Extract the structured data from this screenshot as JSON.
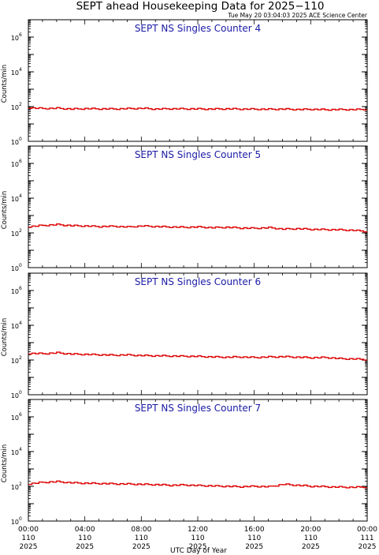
{
  "title": "SEPT ahead Housekeeping Data for 2025−110",
  "timestamp": "Tue May 20 03:04:03 2025 ACE Science Center",
  "xlabel": "UTC Day of Year",
  "x_ticks": [
    {
      "time": "00:00",
      "doy": "110",
      "year": "2025"
    },
    {
      "time": "04:00",
      "doy": "110",
      "year": "2025"
    },
    {
      "time": "08:00",
      "doy": "110",
      "year": "2025"
    },
    {
      "time": "12:00",
      "doy": "110",
      "year": "2025"
    },
    {
      "time": "16:00",
      "doy": "110",
      "year": "2025"
    },
    {
      "time": "20:00",
      "doy": "110",
      "year": "2025"
    },
    {
      "time": "00:00",
      "doy": "111",
      "year": "2025"
    }
  ],
  "ylabel": "Counts/min",
  "y_ticks": [
    {
      "base": "10",
      "exp": "0"
    },
    {
      "base": "10",
      "exp": "2"
    },
    {
      "base": "10",
      "exp": "4"
    },
    {
      "base": "10",
      "exp": "6"
    }
  ],
  "colors": {
    "line": "#dd0000",
    "panel_title": "#1a1aa6",
    "axis": "#000000"
  },
  "chart_data": [
    {
      "type": "line",
      "scale": "log",
      "title": "SEPT NS Singles Counter 4",
      "xlim": [
        0,
        24
      ],
      "ylim": [
        1,
        10000000
      ],
      "x": [
        0,
        1,
        2,
        3,
        4,
        5,
        6,
        7,
        8,
        9,
        10,
        11,
        12,
        13,
        14,
        15,
        16,
        17,
        18,
        19,
        20,
        21,
        22,
        23,
        24
      ],
      "y": [
        85,
        78,
        80,
        72,
        76,
        74,
        73,
        76,
        79,
        72,
        75,
        74,
        73,
        72,
        74,
        72,
        71,
        70,
        72,
        68,
        70,
        66,
        68,
        67,
        70
      ]
    },
    {
      "type": "line",
      "scale": "log",
      "title": "SEPT NS Singles Counter 5",
      "xlim": [
        0,
        24
      ],
      "ylim": [
        1,
        10000000
      ],
      "x": [
        0,
        1,
        2,
        3,
        4,
        5,
        6,
        7,
        8,
        9,
        10,
        11,
        12,
        13,
        14,
        15,
        16,
        17,
        18,
        19,
        20,
        21,
        22,
        23,
        24
      ],
      "y": [
        230,
        270,
        300,
        260,
        250,
        230,
        240,
        220,
        250,
        230,
        220,
        210,
        220,
        200,
        210,
        190,
        185,
        200,
        165,
        175,
        160,
        155,
        150,
        140,
        120
      ]
    },
    {
      "type": "line",
      "scale": "log",
      "title": "SEPT NS Singles Counter 6",
      "xlim": [
        0,
        24
      ],
      "ylim": [
        1,
        10000000
      ],
      "x": [
        0,
        1,
        2,
        3,
        4,
        5,
        6,
        7,
        8,
        9,
        10,
        11,
        12,
        13,
        14,
        15,
        16,
        17,
        18,
        19,
        20,
        21,
        22,
        23,
        24
      ],
      "y": [
        240,
        230,
        260,
        220,
        210,
        200,
        190,
        195,
        180,
        175,
        170,
        165,
        160,
        150,
        145,
        150,
        140,
        150,
        155,
        145,
        135,
        140,
        120,
        115,
        105
      ]
    },
    {
      "type": "line",
      "scale": "log",
      "title": "SEPT NS Singles Counter 7",
      "xlim": [
        0,
        24
      ],
      "ylim": [
        1,
        10000000
      ],
      "x": [
        0,
        1,
        2,
        3,
        4,
        5,
        6,
        7,
        8,
        9,
        10,
        11,
        12,
        13,
        14,
        15,
        16,
        17,
        18,
        19,
        20,
        21,
        22,
        23,
        24
      ],
      "y": [
        140,
        170,
        185,
        160,
        150,
        145,
        140,
        135,
        130,
        125,
        115,
        120,
        110,
        105,
        100,
        95,
        100,
        95,
        130,
        115,
        100,
        95,
        90,
        88,
        92
      ]
    }
  ]
}
